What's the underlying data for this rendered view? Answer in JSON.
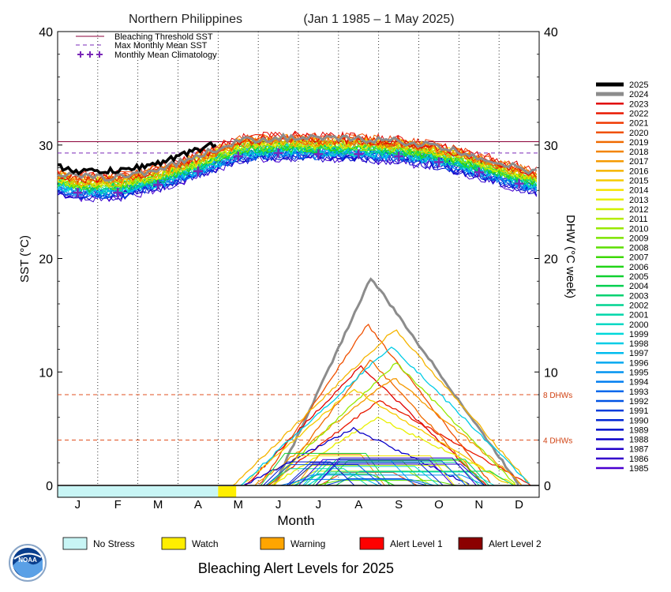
{
  "chart_data": {
    "type": "line",
    "title": "Northern Philippines",
    "subtitle": "(Jan 1 1985 – 1 May 2025)",
    "xlabel": "Month",
    "ylabel_left": "SST (°C)",
    "ylabel_right": "DHW (°C week)",
    "ylim": [
      0,
      40
    ],
    "yticks": [
      "0",
      "10",
      "20",
      "30",
      "40"
    ],
    "months": [
      "J",
      "F",
      "M",
      "A",
      "M",
      "J",
      "J",
      "A",
      "S",
      "O",
      "N",
      "D"
    ],
    "bleaching_threshold_sst": 30.3,
    "max_monthly_mean_sst": 29.3,
    "threshold_color": "#8b0038",
    "mmm_color": "#7a28b8",
    "climatology": {
      "label": "Monthly Mean Climatology",
      "months": [
        1,
        2,
        3,
        4,
        5,
        6,
        7,
        8,
        9,
        10,
        11,
        12
      ],
      "values": [
        25.8,
        25.8,
        26.5,
        27.7,
        29.0,
        29.3,
        29.2,
        29.2,
        29.0,
        28.5,
        27.6,
        26.6
      ]
    },
    "dhw_reference_lines": [
      {
        "value": 8,
        "label": "8 DHWs"
      },
      {
        "value": 4,
        "label": "4 DHWs"
      }
    ],
    "legend_lines": [
      {
        "label": "Bleaching Threshold SST",
        "style": "solid"
      },
      {
        "label": "Max Monthly Mean SST",
        "style": "dashed"
      },
      {
        "label": "Monthly Mean Climatology",
        "style": "plus"
      }
    ],
    "years": [
      {
        "year": "2025",
        "color": "#000000"
      },
      {
        "year": "2024",
        "color": "#8c8c8c"
      },
      {
        "year": "2023",
        "color": "#e00000"
      },
      {
        "year": "2022",
        "color": "#e81800"
      },
      {
        "year": "2021",
        "color": "#f03800"
      },
      {
        "year": "2020",
        "color": "#f05000"
      },
      {
        "year": "2019",
        "color": "#f06a00"
      },
      {
        "year": "2018",
        "color": "#f38400"
      },
      {
        "year": "2017",
        "color": "#f59a00"
      },
      {
        "year": "2016",
        "color": "#f5b400"
      },
      {
        "year": "2015",
        "color": "#f5cc00"
      },
      {
        "year": "2014",
        "color": "#f5e400"
      },
      {
        "year": "2013",
        "color": "#e8f000"
      },
      {
        "year": "2012",
        "color": "#d0f000"
      },
      {
        "year": "2011",
        "color": "#b4ec00"
      },
      {
        "year": "2010",
        "color": "#98e800"
      },
      {
        "year": "2009",
        "color": "#7ce400"
      },
      {
        "year": "2008",
        "color": "#5cde00"
      },
      {
        "year": "2007",
        "color": "#3cd800"
      },
      {
        "year": "2006",
        "color": "#22d418"
      },
      {
        "year": "2005",
        "color": "#10d030"
      },
      {
        "year": "2004",
        "color": "#00d050"
      },
      {
        "year": "2003",
        "color": "#00d270"
      },
      {
        "year": "2002",
        "color": "#00d490"
      },
      {
        "year": "2001",
        "color": "#00d6aa"
      },
      {
        "year": "2000",
        "color": "#00d8c4"
      },
      {
        "year": "1999",
        "color": "#00d8da"
      },
      {
        "year": "1998",
        "color": "#00cce6"
      },
      {
        "year": "1997",
        "color": "#00bcee"
      },
      {
        "year": "1996",
        "color": "#00a8f0"
      },
      {
        "year": "1995",
        "color": "#0094f0"
      },
      {
        "year": "1994",
        "color": "#007ef0"
      },
      {
        "year": "1993",
        "color": "#0068ec"
      },
      {
        "year": "1992",
        "color": "#0052e4"
      },
      {
        "year": "1991",
        "color": "#003cdc"
      },
      {
        "year": "1990",
        "color": "#0026d4"
      },
      {
        "year": "1989",
        "color": "#0010cc"
      },
      {
        "year": "1988",
        "color": "#0a00c8"
      },
      {
        "year": "1987",
        "color": "#2000c8"
      },
      {
        "year": "1986",
        "color": "#3400cc"
      },
      {
        "year": "1985",
        "color": "#4a00d0"
      }
    ],
    "dhw_peaks": [
      {
        "year": "2024",
        "peak": 18.3
      },
      {
        "year": "2023",
        "peak": 10.5
      },
      {
        "year": "2022",
        "peak": 7.5
      },
      {
        "year": "2020",
        "peak": 14.2
      },
      {
        "year": "2019",
        "peak": 11.0
      },
      {
        "year": "2017",
        "peak": 9.5
      },
      {
        "year": "2016",
        "peak": 13.8
      },
      {
        "year": "2015",
        "peak": 8.5
      },
      {
        "year": "2013",
        "peak": 6.0
      },
      {
        "year": "2010",
        "peak": 10.8
      },
      {
        "year": "1998",
        "peak": 12.3
      },
      {
        "year": "1988",
        "peak": 5.0
      }
    ],
    "alert_bar_2025": [
      {
        "level": "No Stress",
        "color": "#c8f5f5",
        "end_month": 4.0
      },
      {
        "level": "Watch",
        "color": "#ffee00",
        "end_month": 4.45
      }
    ]
  },
  "alert_legend": {
    "items": [
      {
        "label": "No Stress",
        "color": "#c8f5f5"
      },
      {
        "label": "Watch",
        "color": "#ffee00"
      },
      {
        "label": "Warning",
        "color": "#ffa500"
      },
      {
        "label": "Alert Level 1",
        "color": "#ff0000"
      },
      {
        "label": "Alert Level 2",
        "color": "#8b0000"
      }
    ],
    "caption": "Bleaching Alert Levels for 2025"
  },
  "logo": {
    "text": "NOAA"
  }
}
